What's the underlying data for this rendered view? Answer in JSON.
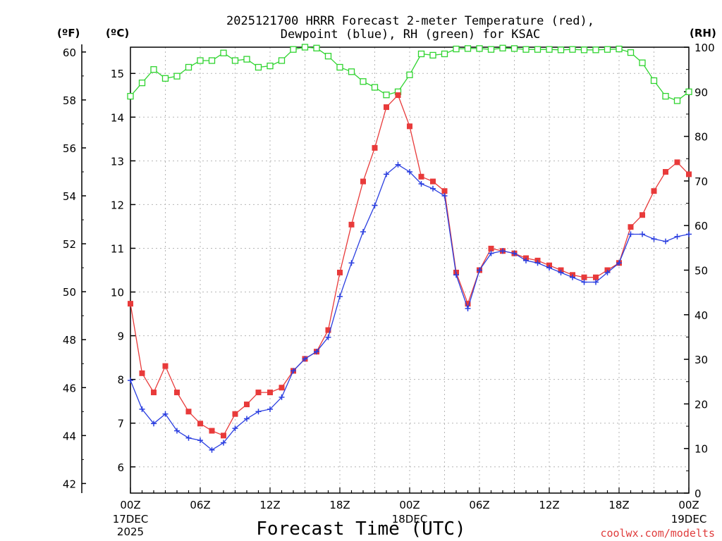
{
  "chart_data": {
    "type": "line",
    "title_lines": [
      "2025121700 HRRR Forecast 2-meter Temperature (red),",
      "Dewpoint (blue), RH (green) for KSAC"
    ],
    "xlabel": "Forecast Time (UTC)",
    "unit_f": "(ºF)",
    "unit_c": "(ºC)",
    "unit_rh": "(RH)",
    "x_tick_labels": [
      "00Z",
      "06Z",
      "12Z",
      "18Z",
      "00Z",
      "06Z",
      "12Z",
      "18Z",
      "00Z"
    ],
    "x_tick_hours": [
      0,
      6,
      12,
      18,
      24,
      30,
      36,
      42,
      48
    ],
    "date_labels": [
      {
        "hour": 0,
        "lines": [
          "17DEC",
          "2025"
        ]
      },
      {
        "hour": 24,
        "lines": [
          "18DEC"
        ]
      },
      {
        "hour": 48,
        "lines": [
          "19DEC"
        ]
      }
    ],
    "xlim_hours": [
      0,
      48
    ],
    "y_left_f": {
      "ticks": [
        42,
        44,
        46,
        48,
        50,
        52,
        54,
        56,
        58,
        60
      ],
      "range": [
        41.6,
        60.2
      ]
    },
    "y_left_c": {
      "ticks": [
        6,
        7,
        8,
        9,
        10,
        11,
        12,
        13,
        14,
        15
      ],
      "range": [
        5.4,
        15.6
      ]
    },
    "y_right_rh": {
      "ticks": [
        0,
        10,
        20,
        30,
        40,
        50,
        60,
        70,
        80,
        90,
        100
      ],
      "range": [
        0,
        100
      ]
    },
    "grid": true,
    "series": [
      {
        "key": "temperature",
        "unit": "F",
        "color": "#e83a3a",
        "marker": "filled-square",
        "values": [
          49.5,
          46.6,
          45.8,
          46.9,
          45.8,
          45.0,
          44.5,
          44.2,
          44.0,
          44.9,
          45.3,
          45.8,
          45.8,
          46.0,
          46.7,
          47.2,
          47.5,
          48.4,
          50.8,
          52.8,
          54.6,
          56.0,
          57.7,
          58.2,
          56.9,
          54.8,
          54.6,
          54.2,
          50.8,
          49.5,
          50.9,
          51.8,
          51.7,
          51.6,
          51.4,
          51.3,
          51.1,
          50.9,
          50.7,
          50.6,
          50.6,
          50.9,
          51.2,
          52.7,
          53.2,
          54.2,
          55.0,
          55.4,
          54.9
        ],
        "hours_start": 0
      },
      {
        "key": "dewpoint",
        "unit": "F",
        "color": "#2a3ee0",
        "marker": "plus",
        "values": [
          46.3,
          45.1,
          44.5,
          44.9,
          44.2,
          43.9,
          43.8,
          43.4,
          43.7,
          44.3,
          44.7,
          45.0,
          45.1,
          45.6,
          46.7,
          47.2,
          47.5,
          48.1,
          49.8,
          51.2,
          52.5,
          53.6,
          54.9,
          55.3,
          55.0,
          54.5,
          54.3,
          54.0,
          50.7,
          49.3,
          50.9,
          51.6,
          51.7,
          51.6,
          51.3,
          51.2,
          51.0,
          50.8,
          50.6,
          50.4,
          50.4,
          50.8,
          51.2,
          52.4,
          52.4,
          52.2,
          52.1,
          52.3,
          52.4
        ],
        "hours_start": 0
      },
      {
        "key": "rh",
        "unit": "%",
        "color": "#2fd42f",
        "marker": "open-square",
        "values": [
          89,
          92,
          95,
          93,
          93.5,
          95.5,
          97,
          97,
          98.7,
          97,
          97.3,
          95.5,
          95.8,
          97,
          99.5,
          100,
          99.8,
          98,
          95.5,
          94.5,
          92.3,
          91,
          89.3,
          90,
          93.8,
          98.5,
          98.2,
          98.5,
          99.6,
          99.7,
          99.7,
          99.5,
          99.8,
          99.7,
          99.5,
          99.5,
          99.5,
          99.4,
          99.5,
          99.4,
          99.4,
          99.5,
          99.6,
          98.8,
          96.5,
          92.5,
          89,
          88,
          90
        ],
        "hours_start": 0
      }
    ],
    "credit": "coolwx.com/modelts"
  }
}
